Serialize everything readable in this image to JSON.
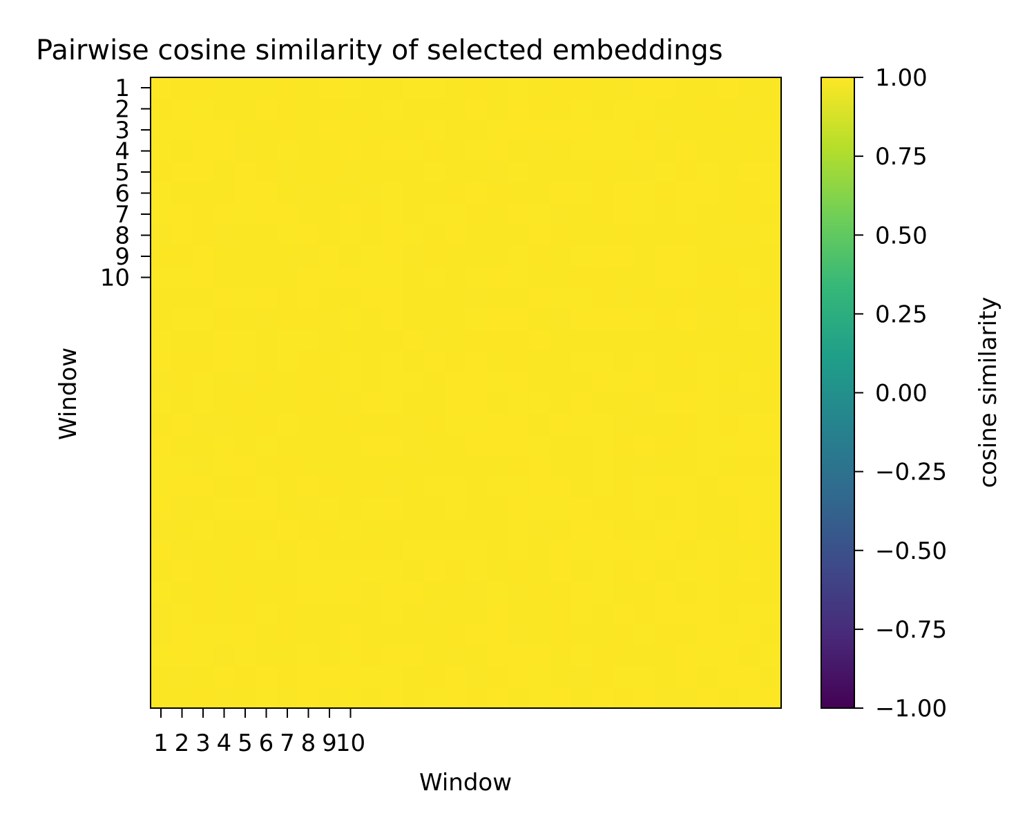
{
  "chart_data": {
    "type": "heatmap",
    "title": "Pairwise cosine similarity of selected embeddings",
    "xlabel": "Window",
    "ylabel": "Window",
    "x_tick_labels": [
      "1",
      "2",
      "3",
      "4",
      "5",
      "6",
      "7",
      "8",
      "9",
      "10"
    ],
    "y_tick_labels": [
      "1",
      "2",
      "3",
      "4",
      "5",
      "6",
      "7",
      "8",
      "9",
      "10"
    ],
    "grid_size": 30,
    "value_range": [
      0.96,
      1.0
    ],
    "colormap": "viridis",
    "colorbar": {
      "label": "cosine similarity",
      "vmin": -1.0,
      "vmax": 1.0,
      "ticks": [
        1.0,
        0.75,
        0.5,
        0.25,
        0.0,
        -0.25,
        -0.5,
        -0.75,
        -1.0
      ],
      "tick_labels": [
        "1.00",
        "0.75",
        "0.50",
        "0.25",
        "0.00",
        "−0.25",
        "−0.50",
        "−0.75",
        "−1.00"
      ],
      "position": "right"
    },
    "grid": false
  }
}
